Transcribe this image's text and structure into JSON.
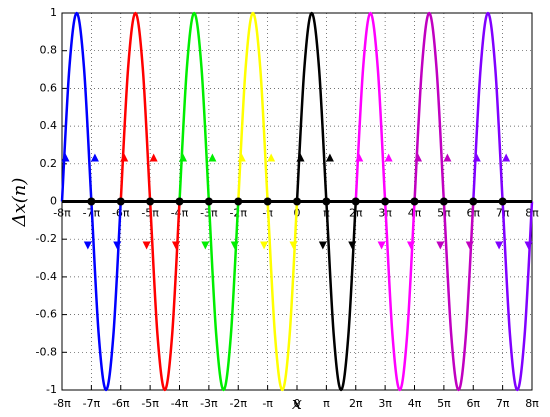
{
  "chart_data": {
    "type": "line",
    "x_label": "x",
    "y_label": "Δx(n)",
    "xlim": [
      -8,
      8
    ],
    "ylim": [
      -1,
      1
    ],
    "xticks": [
      {
        "value": -8,
        "label": "-8π"
      },
      {
        "value": -7,
        "label": "-7π"
      },
      {
        "value": -6,
        "label": "-6π"
      },
      {
        "value": -5,
        "label": "-5π"
      },
      {
        "value": -4,
        "label": "-4π"
      },
      {
        "value": -3,
        "label": "-3π"
      },
      {
        "value": -2,
        "label": "-2π"
      },
      {
        "value": -1,
        "label": "-π"
      },
      0,
      {
        "value": 1,
        "label": "π"
      },
      {
        "value": 2,
        "label": "2π"
      },
      {
        "value": 3,
        "label": "3π"
      },
      {
        "value": 4,
        "label": "4π"
      },
      {
        "value": 5,
        "label": "5π"
      },
      {
        "value": 6,
        "label": "6π"
      },
      {
        "value": 7,
        "label": "7π"
      },
      {
        "value": 8,
        "label": "8π"
      }
    ],
    "yticks": [
      -1,
      -0.8,
      -0.6,
      -0.4,
      -0.2,
      0,
      0.2,
      0.4,
      0.6,
      0.8,
      1
    ],
    "grid": true,
    "series": [
      {
        "color": "#0000ff",
        "x": [
          -8,
          -7.75,
          -7.5,
          -7.25,
          -7,
          -6.75,
          -6.5,
          -6.25,
          -6
        ],
        "values": [
          0,
          0.707,
          1,
          0.707,
          0,
          -0.707,
          -1,
          -0.707,
          0
        ]
      },
      {
        "color": "#ff0000",
        "x": [
          -6,
          -5.75,
          -5.5,
          -5.25,
          -5,
          -4.75,
          -4.5,
          -4.25,
          -4
        ],
        "values": [
          0,
          0.707,
          1,
          0.707,
          0,
          -0.707,
          -1,
          -0.707,
          0
        ]
      },
      {
        "color": "#00ee00",
        "x": [
          -4,
          -3.75,
          -3.5,
          -3.25,
          -3,
          -2.75,
          -2.5,
          -2.25,
          -2
        ],
        "values": [
          0,
          0.707,
          1,
          0.707,
          0,
          -0.707,
          -1,
          -0.707,
          0
        ]
      },
      {
        "color": "#ffff00",
        "x": [
          -2,
          -1.75,
          -1.5,
          -1.25,
          -1,
          -0.75,
          -0.5,
          -0.25,
          0
        ],
        "values": [
          0,
          0.707,
          1,
          0.707,
          0,
          -0.707,
          -1,
          -0.707,
          0
        ]
      },
      {
        "color": "#000000",
        "x": [
          0,
          0.25,
          0.5,
          0.75,
          1,
          1.25,
          1.5,
          1.75,
          2
        ],
        "values": [
          0,
          0.707,
          1,
          0.707,
          0,
          -0.707,
          -1,
          -0.707,
          0
        ]
      },
      {
        "color": "#ff00ff",
        "x": [
          2,
          2.25,
          2.5,
          2.75,
          3,
          3.25,
          3.5,
          3.75,
          4
        ],
        "values": [
          0,
          0.707,
          1,
          0.707,
          0,
          -0.707,
          -1,
          -0.707,
          0
        ]
      },
      {
        "color": "#c000c0",
        "x": [
          4,
          4.25,
          4.5,
          4.75,
          5,
          5.25,
          5.5,
          5.75,
          6
        ],
        "values": [
          0,
          0.707,
          1,
          0.707,
          0,
          -0.707,
          -1,
          -0.707,
          0
        ]
      },
      {
        "color": "#8000ff",
        "x": [
          6,
          6.25,
          6.5,
          6.75,
          7,
          7.25,
          7.5,
          7.75,
          8
        ],
        "values": [
          0,
          0.707,
          1,
          0.707,
          0,
          -0.707,
          -1,
          -0.707,
          0
        ]
      }
    ]
  }
}
